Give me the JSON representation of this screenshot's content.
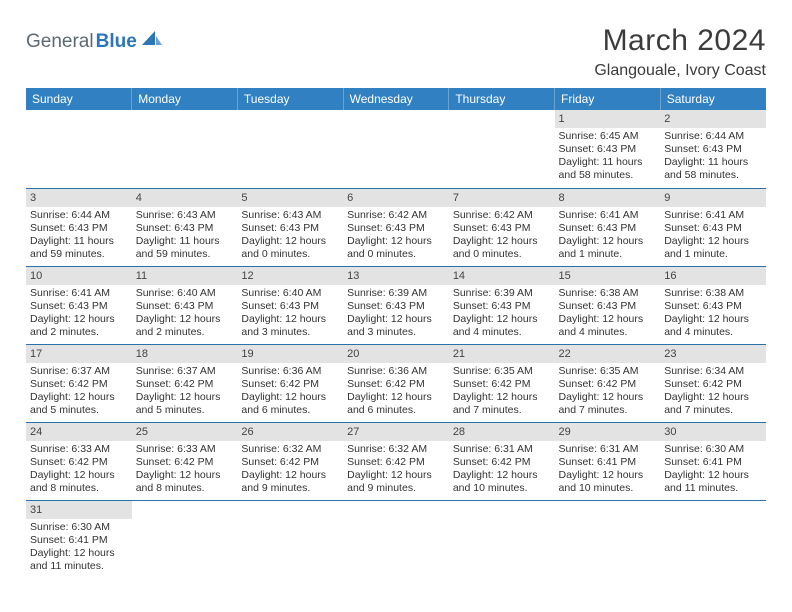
{
  "brand": {
    "general": "General",
    "blue": "Blue"
  },
  "title": "March 2024",
  "location": "Glangouale, Ivory Coast",
  "colors": {
    "header_bg": "#3080c2",
    "header_text": "#ffffff",
    "daynum_bg": "#e3e3e3",
    "row_border": "#2b6fad",
    "logo_blue": "#2b75b8",
    "logo_gray": "#5c6a72"
  },
  "weekdays": [
    "Sunday",
    "Monday",
    "Tuesday",
    "Wednesday",
    "Thursday",
    "Friday",
    "Saturday"
  ],
  "weeks": [
    [
      null,
      null,
      null,
      null,
      null,
      {
        "d": "1",
        "sr": "Sunrise: 6:45 AM",
        "ss": "Sunset: 6:43 PM",
        "dl1": "Daylight: 11 hours",
        "dl2": "and 58 minutes."
      },
      {
        "d": "2",
        "sr": "Sunrise: 6:44 AM",
        "ss": "Sunset: 6:43 PM",
        "dl1": "Daylight: 11 hours",
        "dl2": "and 58 minutes."
      }
    ],
    [
      {
        "d": "3",
        "sr": "Sunrise: 6:44 AM",
        "ss": "Sunset: 6:43 PM",
        "dl1": "Daylight: 11 hours",
        "dl2": "and 59 minutes."
      },
      {
        "d": "4",
        "sr": "Sunrise: 6:43 AM",
        "ss": "Sunset: 6:43 PM",
        "dl1": "Daylight: 11 hours",
        "dl2": "and 59 minutes."
      },
      {
        "d": "5",
        "sr": "Sunrise: 6:43 AM",
        "ss": "Sunset: 6:43 PM",
        "dl1": "Daylight: 12 hours",
        "dl2": "and 0 minutes."
      },
      {
        "d": "6",
        "sr": "Sunrise: 6:42 AM",
        "ss": "Sunset: 6:43 PM",
        "dl1": "Daylight: 12 hours",
        "dl2": "and 0 minutes."
      },
      {
        "d": "7",
        "sr": "Sunrise: 6:42 AM",
        "ss": "Sunset: 6:43 PM",
        "dl1": "Daylight: 12 hours",
        "dl2": "and 0 minutes."
      },
      {
        "d": "8",
        "sr": "Sunrise: 6:41 AM",
        "ss": "Sunset: 6:43 PM",
        "dl1": "Daylight: 12 hours",
        "dl2": "and 1 minute."
      },
      {
        "d": "9",
        "sr": "Sunrise: 6:41 AM",
        "ss": "Sunset: 6:43 PM",
        "dl1": "Daylight: 12 hours",
        "dl2": "and 1 minute."
      }
    ],
    [
      {
        "d": "10",
        "sr": "Sunrise: 6:41 AM",
        "ss": "Sunset: 6:43 PM",
        "dl1": "Daylight: 12 hours",
        "dl2": "and 2 minutes."
      },
      {
        "d": "11",
        "sr": "Sunrise: 6:40 AM",
        "ss": "Sunset: 6:43 PM",
        "dl1": "Daylight: 12 hours",
        "dl2": "and 2 minutes."
      },
      {
        "d": "12",
        "sr": "Sunrise: 6:40 AM",
        "ss": "Sunset: 6:43 PM",
        "dl1": "Daylight: 12 hours",
        "dl2": "and 3 minutes."
      },
      {
        "d": "13",
        "sr": "Sunrise: 6:39 AM",
        "ss": "Sunset: 6:43 PM",
        "dl1": "Daylight: 12 hours",
        "dl2": "and 3 minutes."
      },
      {
        "d": "14",
        "sr": "Sunrise: 6:39 AM",
        "ss": "Sunset: 6:43 PM",
        "dl1": "Daylight: 12 hours",
        "dl2": "and 4 minutes."
      },
      {
        "d": "15",
        "sr": "Sunrise: 6:38 AM",
        "ss": "Sunset: 6:43 PM",
        "dl1": "Daylight: 12 hours",
        "dl2": "and 4 minutes."
      },
      {
        "d": "16",
        "sr": "Sunrise: 6:38 AM",
        "ss": "Sunset: 6:43 PM",
        "dl1": "Daylight: 12 hours",
        "dl2": "and 4 minutes."
      }
    ],
    [
      {
        "d": "17",
        "sr": "Sunrise: 6:37 AM",
        "ss": "Sunset: 6:42 PM",
        "dl1": "Daylight: 12 hours",
        "dl2": "and 5 minutes."
      },
      {
        "d": "18",
        "sr": "Sunrise: 6:37 AM",
        "ss": "Sunset: 6:42 PM",
        "dl1": "Daylight: 12 hours",
        "dl2": "and 5 minutes."
      },
      {
        "d": "19",
        "sr": "Sunrise: 6:36 AM",
        "ss": "Sunset: 6:42 PM",
        "dl1": "Daylight: 12 hours",
        "dl2": "and 6 minutes."
      },
      {
        "d": "20",
        "sr": "Sunrise: 6:36 AM",
        "ss": "Sunset: 6:42 PM",
        "dl1": "Daylight: 12 hours",
        "dl2": "and 6 minutes."
      },
      {
        "d": "21",
        "sr": "Sunrise: 6:35 AM",
        "ss": "Sunset: 6:42 PM",
        "dl1": "Daylight: 12 hours",
        "dl2": "and 7 minutes."
      },
      {
        "d": "22",
        "sr": "Sunrise: 6:35 AM",
        "ss": "Sunset: 6:42 PM",
        "dl1": "Daylight: 12 hours",
        "dl2": "and 7 minutes."
      },
      {
        "d": "23",
        "sr": "Sunrise: 6:34 AM",
        "ss": "Sunset: 6:42 PM",
        "dl1": "Daylight: 12 hours",
        "dl2": "and 7 minutes."
      }
    ],
    [
      {
        "d": "24",
        "sr": "Sunrise: 6:33 AM",
        "ss": "Sunset: 6:42 PM",
        "dl1": "Daylight: 12 hours",
        "dl2": "and 8 minutes."
      },
      {
        "d": "25",
        "sr": "Sunrise: 6:33 AM",
        "ss": "Sunset: 6:42 PM",
        "dl1": "Daylight: 12 hours",
        "dl2": "and 8 minutes."
      },
      {
        "d": "26",
        "sr": "Sunrise: 6:32 AM",
        "ss": "Sunset: 6:42 PM",
        "dl1": "Daylight: 12 hours",
        "dl2": "and 9 minutes."
      },
      {
        "d": "27",
        "sr": "Sunrise: 6:32 AM",
        "ss": "Sunset: 6:42 PM",
        "dl1": "Daylight: 12 hours",
        "dl2": "and 9 minutes."
      },
      {
        "d": "28",
        "sr": "Sunrise: 6:31 AM",
        "ss": "Sunset: 6:42 PM",
        "dl1": "Daylight: 12 hours",
        "dl2": "and 10 minutes."
      },
      {
        "d": "29",
        "sr": "Sunrise: 6:31 AM",
        "ss": "Sunset: 6:41 PM",
        "dl1": "Daylight: 12 hours",
        "dl2": "and 10 minutes."
      },
      {
        "d": "30",
        "sr": "Sunrise: 6:30 AM",
        "ss": "Sunset: 6:41 PM",
        "dl1": "Daylight: 12 hours",
        "dl2": "and 11 minutes."
      }
    ],
    [
      {
        "d": "31",
        "sr": "Sunrise: 6:30 AM",
        "ss": "Sunset: 6:41 PM",
        "dl1": "Daylight: 12 hours",
        "dl2": "and 11 minutes."
      },
      null,
      null,
      null,
      null,
      null,
      null
    ]
  ]
}
